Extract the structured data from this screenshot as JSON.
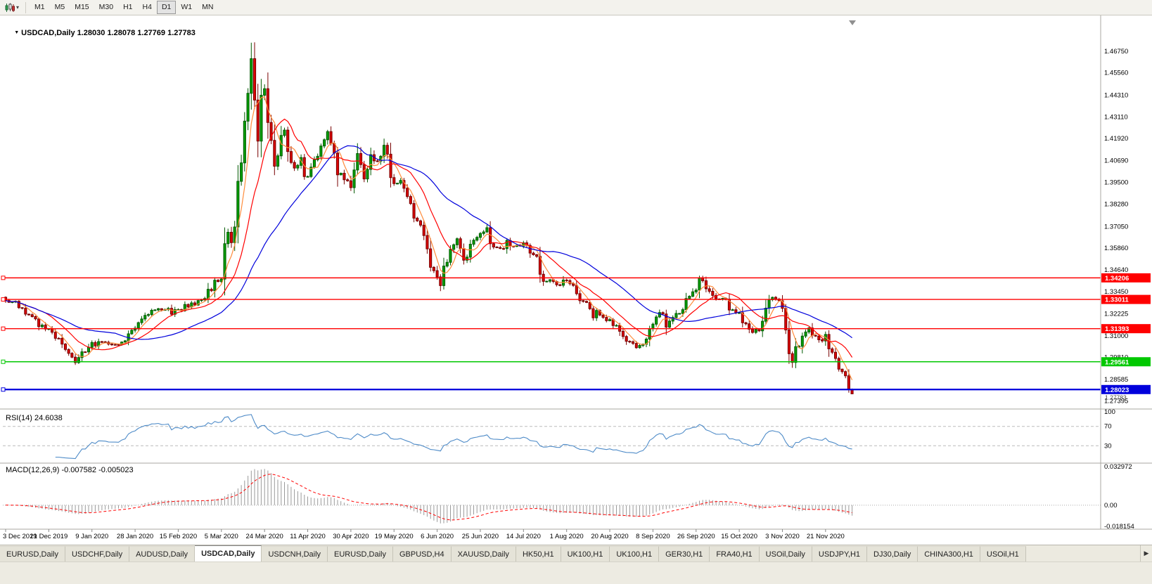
{
  "icons": {
    "collapse_triangle": "▼",
    "toolbar_caret": "▾",
    "tab_scroll_right": "▶"
  },
  "toolbar": {
    "timeframes": [
      "M1",
      "M5",
      "M15",
      "M30",
      "H1",
      "H4",
      "D1",
      "W1",
      "MN"
    ],
    "active_timeframe": "D1"
  },
  "chart": {
    "title_symbol": "USDCAD,Daily",
    "open": "1.28030",
    "high": "1.28078",
    "low": "1.27769",
    "close": "1.27783",
    "current_price_label": "1.27783",
    "price_ticks": [
      "1.46750",
      "1.45560",
      "1.44310",
      "1.43110",
      "1.41920",
      "1.40690",
      "1.39500",
      "1.38280",
      "1.37050",
      "1.35860",
      "1.34640",
      "1.33450",
      "1.32225",
      "1.31000",
      "1.29810",
      "1.28585",
      "1.27395"
    ],
    "date_labels": [
      "3 Dec 2019",
      "21 Dec 2019",
      "9 Jan 2020",
      "28 Jan 2020",
      "15 Feb 2020",
      "5 Mar 2020",
      "24 Mar 2020",
      "11 Apr 2020",
      "30 Apr 2020",
      "19 May 2020",
      "6 Jun 2020",
      "25 Jun 2020",
      "14 Jul 2020",
      "1 Aug 2020",
      "20 Aug 2020",
      "8 Sep 2020",
      "26 Sep 2020",
      "15 Oct 2020",
      "3 Nov 2020",
      "21 Nov 2020"
    ]
  },
  "indicators": {
    "rsi": {
      "label": "RSI(14) 24.6038",
      "axis_labels": [
        "100",
        "70",
        "30"
      ]
    },
    "macd": {
      "label": "MACD(12,26,9) -0.007582 -0.005023",
      "axis_labels": [
        "0.032972",
        "0.00",
        "-0.018154"
      ]
    }
  },
  "tabs": {
    "active_index": 3,
    "items": [
      {
        "label": "EURUSD,Daily"
      },
      {
        "label": "USDCHF,Daily"
      },
      {
        "label": "AUDUSD,Daily"
      },
      {
        "label": "USDCAD,Daily"
      },
      {
        "label": "USDCNH,Daily"
      },
      {
        "label": "EURUSD,Daily"
      },
      {
        "label": "GBPUSD,H4"
      },
      {
        "label": "XAUUSD,Daily"
      },
      {
        "label": "HK50,H1"
      },
      {
        "label": "UK100,H1"
      },
      {
        "label": "UK100,H1"
      },
      {
        "label": "GER30,H1"
      },
      {
        "label": "FRA40,H1"
      },
      {
        "label": "USOil,Daily"
      },
      {
        "label": "USDJPY,H1"
      },
      {
        "label": "DJ30,Daily"
      },
      {
        "label": "CHINA300,H1"
      },
      {
        "label": "USOil,H1"
      }
    ]
  },
  "colors": {
    "up_fill": "#00A000",
    "up_stroke": "#005A00",
    "down_fill": "#DC0000",
    "down_stroke": "#780000",
    "rsi_line": "#4E8BC8",
    "macd_hist": "#9A9A9A",
    "macd_signal": "#FF0000",
    "axis_text": "#000000",
    "separator": "#A9A7A0"
  },
  "chart_data": {
    "type": "candlestick",
    "symbol": "USDCAD",
    "timeframe": "Daily",
    "candles_count": 256,
    "ylim": [
      1.271,
      1.485
    ],
    "x_tick_interval_candles": 13,
    "price_anchors": [
      [
        0,
        1.3295
      ],
      [
        3,
        1.3272
      ],
      [
        6,
        1.3232
      ],
      [
        9,
        1.3168
      ],
      [
        13,
        1.3132
      ],
      [
        16,
        1.3088
      ],
      [
        19,
        1.3015
      ],
      [
        21,
        1.2968
      ],
      [
        23,
        1.2996
      ],
      [
        26,
        1.3048
      ],
      [
        29,
        1.3068
      ],
      [
        32,
        1.3042
      ],
      [
        35,
        1.3058
      ],
      [
        37,
        1.3096
      ],
      [
        39,
        1.3158
      ],
      [
        42,
        1.3202
      ],
      [
        45,
        1.3238
      ],
      [
        48,
        1.3256
      ],
      [
        50,
        1.3232
      ],
      [
        52,
        1.3248
      ],
      [
        54,
        1.3262
      ],
      [
        56,
        1.327
      ],
      [
        58,
        1.3292
      ],
      [
        60,
        1.3322
      ],
      [
        62,
        1.3362
      ],
      [
        64,
        1.3405
      ],
      [
        65,
        1.3422
      ],
      [
        66,
        1.356
      ],
      [
        67,
        1.3718
      ],
      [
        68,
        1.3632
      ],
      [
        69,
        1.3752
      ],
      [
        70,
        1.3905
      ],
      [
        71,
        1.4062
      ],
      [
        72,
        1.4282
      ],
      [
        73,
        1.449
      ],
      [
        74,
        1.4638
      ],
      [
        75,
        1.4455
      ],
      [
        76,
        1.4228
      ],
      [
        77,
        1.4382
      ],
      [
        78,
        1.4468
      ],
      [
        79,
        1.433
      ],
      [
        80,
        1.4178
      ],
      [
        81,
        1.4062
      ],
      [
        82,
        1.4092
      ],
      [
        83,
        1.4172
      ],
      [
        84,
        1.4232
      ],
      [
        85,
        1.415
      ],
      [
        86,
        1.408
      ],
      [
        87,
        1.4022
      ],
      [
        88,
        1.4062
      ],
      [
        89,
        1.4108
      ],
      [
        90,
        1.4022
      ],
      [
        91,
        1.3962
      ],
      [
        93,
        1.4058
      ],
      [
        95,
        1.4128
      ],
      [
        97,
        1.4232
      ],
      [
        99,
        1.4062
      ],
      [
        101,
        1.3998
      ],
      [
        104,
        1.3938
      ],
      [
        106,
        1.4088
      ],
      [
        108,
        1.3992
      ],
      [
        110,
        1.4088
      ],
      [
        112,
        1.4058
      ],
      [
        114,
        1.4128
      ],
      [
        117,
        1.3922
      ],
      [
        119,
        1.3988
      ],
      [
        121,
        1.3872
      ],
      [
        123,
        1.3772
      ],
      [
        125,
        1.3682
      ],
      [
        127,
        1.3562
      ],
      [
        129,
        1.3472
      ],
      [
        131,
        1.3396
      ],
      [
        133,
        1.3498
      ],
      [
        135,
        1.3598
      ],
      [
        136,
        1.3625
      ],
      [
        138,
        1.3546
      ],
      [
        140,
        1.3598
      ],
      [
        143,
        1.3655
      ],
      [
        145,
        1.3686
      ],
      [
        147,
        1.3602
      ],
      [
        149,
        1.3566
      ],
      [
        151,
        1.3616
      ],
      [
        153,
        1.3586
      ],
      [
        156,
        1.361
      ],
      [
        158,
        1.3566
      ],
      [
        160,
        1.3526
      ],
      [
        162,
        1.3412
      ],
      [
        164,
        1.3425
      ],
      [
        166,
        1.3382
      ],
      [
        169,
        1.341
      ],
      [
        171,
        1.338
      ],
      [
        173,
        1.3302
      ],
      [
        175,
        1.3262
      ],
      [
        177,
        1.3222
      ],
      [
        179,
        1.323
      ],
      [
        181,
        1.3196
      ],
      [
        183,
        1.3172
      ],
      [
        185,
        1.3126
      ],
      [
        187,
        1.3072
      ],
      [
        189,
        1.3036
      ],
      [
        190,
        1.3018
      ],
      [
        192,
        1.3062
      ],
      [
        194,
        1.3122
      ],
      [
        195,
        1.318
      ],
      [
        197,
        1.3222
      ],
      [
        199,
        1.3162
      ],
      [
        201,
        1.3202
      ],
      [
        203,
        1.3242
      ],
      [
        205,
        1.3282
      ],
      [
        207,
        1.3348
      ],
      [
        209,
        1.3398
      ],
      [
        210,
        1.3402
      ],
      [
        212,
        1.3322
      ],
      [
        214,
        1.3282
      ],
      [
        216,
        1.3312
      ],
      [
        218,
        1.3252
      ],
      [
        221,
        1.3212
      ],
      [
        223,
        1.3182
      ],
      [
        225,
        1.3122
      ],
      [
        227,
        1.3142
      ],
      [
        229,
        1.3232
      ],
      [
        231,
        1.3342
      ],
      [
        233,
        1.3272
      ],
      [
        234,
        1.3202
      ],
      [
        235,
        1.3082
      ],
      [
        236,
        1.2992
      ],
      [
        237,
        1.2946
      ],
      [
        238,
        1.3012
      ],
      [
        240,
        1.3082
      ],
      [
        242,
        1.3142
      ],
      [
        244,
        1.3098
      ],
      [
        246,
        1.3062
      ],
      [
        247,
        1.3092
      ],
      [
        248,
        1.3052
      ],
      [
        250,
        1.2972
      ],
      [
        251,
        1.2932
      ],
      [
        252,
        1.2902
      ],
      [
        253,
        1.2878
      ],
      [
        254,
        1.2803
      ],
      [
        255,
        1.2778
      ]
    ],
    "moving_averages": [
      {
        "period": 5,
        "color": "#FF8C3C"
      },
      {
        "period": 13,
        "color": "#FF0000"
      },
      {
        "period": 34,
        "color": "#0000DC"
      }
    ],
    "levels": [
      {
        "price": 1.34206,
        "label": "1.34206",
        "color": "#FF0000",
        "width": 1.4
      },
      {
        "price": 1.33011,
        "label": "1.33011",
        "color": "#FF0000",
        "width": 1.4
      },
      {
        "price": 1.31393,
        "label": "1.31393",
        "color": "#FF0000",
        "width": 1.4
      },
      {
        "price": 1.29561,
        "label": "1.29561",
        "color": "#00C800",
        "width": 1.6
      },
      {
        "price": 1.28023,
        "label": "1.28023",
        "color": "#0000DC",
        "width": 2.2
      }
    ],
    "rsi": {
      "period": 14,
      "last_value": 24.6038,
      "guide_levels": [
        70,
        30
      ]
    },
    "macd": {
      "fast": 12,
      "slow": 26,
      "signal": 9,
      "last_macd": -0.007582,
      "last_signal": -0.005023,
      "ylim": [
        -0.018154,
        0.032972
      ]
    }
  }
}
